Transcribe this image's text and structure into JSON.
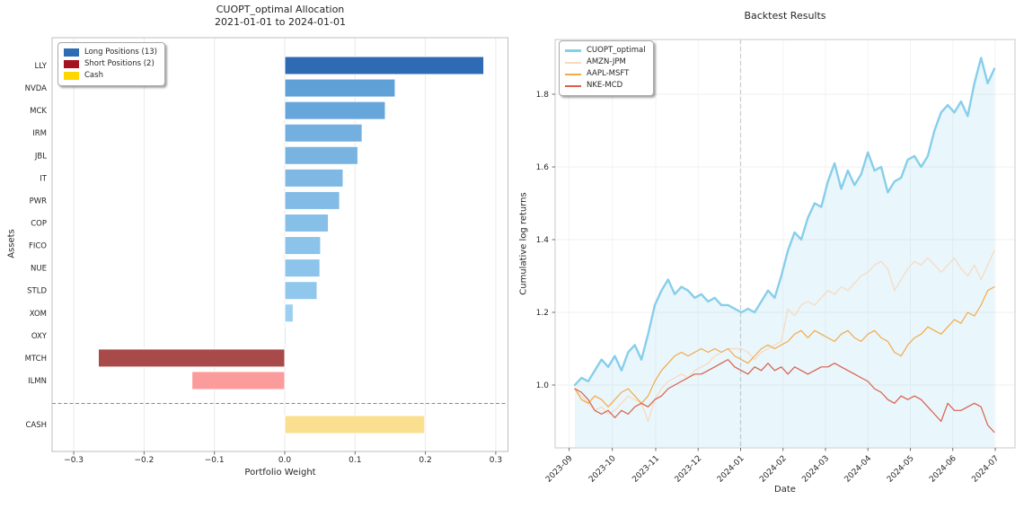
{
  "figure": {
    "background": "#ffffff"
  },
  "chart_data": [
    {
      "id": "allocation",
      "type": "bar",
      "orientation": "horizontal",
      "title": "CUOPT_optimal Allocation",
      "subtitle": "2021-01-01 to 2024-01-01",
      "xlabel": "Portfolio Weight",
      "ylabel": "Assets",
      "xlim": [
        -0.33,
        0.318
      ],
      "grid": "vertical",
      "xticks": [
        -0.3,
        -0.2,
        -0.1,
        0.0,
        0.1,
        0.2,
        0.3
      ],
      "xtick_labels": [
        "−0.3",
        "−0.2",
        "−0.1",
        "0.0",
        "0.1",
        "0.2",
        "0.3"
      ],
      "categories": [
        "LLY",
        "NVDA",
        "MCK",
        "IRM",
        "JBL",
        "IT",
        "PWR",
        "COP",
        "FICO",
        "NUE",
        "STLD",
        "XOM",
        "OXY",
        "MTCH",
        "ILMN",
        "CASH"
      ],
      "values": [
        0.283,
        0.157,
        0.143,
        0.11,
        0.104,
        0.083,
        0.078,
        0.062,
        0.051,
        0.05,
        0.046,
        0.012,
        0.002,
        -0.265,
        -0.132,
        0.199
      ],
      "bar_colors": [
        "#2F6BB5",
        "#5FA0D6",
        "#67A6DA",
        "#73AFDF",
        "#79B4E1",
        "#7EB8E3",
        "#82BBE5",
        "#86BFE8",
        "#8BC3EA",
        "#8CC4EB",
        "#90C7ED",
        "#9CD0F0",
        "#A9DAF7",
        "#A84A4A",
        "#FC9B9B",
        "#FAE08E"
      ],
      "separator_after_index": 14,
      "legend_position": "upper left",
      "legend": [
        {
          "label": "Long Positions (13)",
          "color": "#2E6DB4"
        },
        {
          "label": "Short Positions (2)",
          "color": "#A51220"
        },
        {
          "label": "Cash",
          "color": "#FFD700"
        }
      ]
    },
    {
      "id": "backtest",
      "type": "line",
      "title": "Backtest Results",
      "xlabel": "Date",
      "ylabel": "Cumulative log returns",
      "grid": "both",
      "yticks": [
        1.0,
        1.2,
        1.4,
        1.6,
        1.8
      ],
      "ytick_labels": [
        "1.0",
        "1.2",
        "1.4",
        "1.6",
        "1.8"
      ],
      "xtick_labels": [
        "2023-09",
        "2023-10",
        "2023-11",
        "2023-12",
        "2024-01",
        "2024-02",
        "2024-03",
        "2024-04",
        "2024-05",
        "2024-06",
        "2024-07"
      ],
      "vline_at": "2024-01",
      "vline_style": "dashed",
      "legend_position": "upper left",
      "series": [
        {
          "name": "CUOPT_optimal",
          "color": "#87CEEB",
          "line_width": 2.4,
          "area_fill": "rgba(135,206,235,0.18)",
          "values": [
            1.0,
            1.02,
            1.01,
            1.04,
            1.07,
            1.05,
            1.08,
            1.04,
            1.09,
            1.11,
            1.07,
            1.14,
            1.22,
            1.26,
            1.29,
            1.25,
            1.27,
            1.26,
            1.24,
            1.25,
            1.23,
            1.24,
            1.22,
            1.22,
            1.21,
            1.2,
            1.21,
            1.2,
            1.23,
            1.26,
            1.24,
            1.3,
            1.37,
            1.42,
            1.4,
            1.46,
            1.5,
            1.49,
            1.56,
            1.61,
            1.54,
            1.59,
            1.55,
            1.58,
            1.64,
            1.59,
            1.6,
            1.53,
            1.56,
            1.57,
            1.62,
            1.63,
            1.6,
            1.63,
            1.7,
            1.75,
            1.77,
            1.75,
            1.78,
            1.74,
            1.83,
            1.9,
            1.83,
            1.87
          ]
        },
        {
          "name": "AMZN-JPM",
          "color": "#F9D9BD",
          "line_width": 1.2,
          "values": [
            0.99,
            0.97,
            0.95,
            0.93,
            0.94,
            0.92,
            0.93,
            0.95,
            0.97,
            0.96,
            0.95,
            0.9,
            0.96,
            0.99,
            1.01,
            1.02,
            1.03,
            1.02,
            1.04,
            1.05,
            1.06,
            1.08,
            1.09,
            1.1,
            1.1,
            1.1,
            1.09,
            1.07,
            1.09,
            1.1,
            1.11,
            1.12,
            1.21,
            1.19,
            1.22,
            1.23,
            1.22,
            1.24,
            1.26,
            1.25,
            1.27,
            1.26,
            1.28,
            1.3,
            1.31,
            1.33,
            1.34,
            1.32,
            1.26,
            1.29,
            1.32,
            1.34,
            1.33,
            1.35,
            1.33,
            1.31,
            1.33,
            1.35,
            1.32,
            1.3,
            1.33,
            1.29,
            1.33,
            1.37
          ]
        },
        {
          "name": "AAPL-MSFT",
          "color": "#F5A947",
          "line_width": 1.2,
          "values": [
            0.99,
            0.96,
            0.95,
            0.97,
            0.96,
            0.94,
            0.96,
            0.98,
            0.99,
            0.97,
            0.95,
            0.97,
            1.01,
            1.04,
            1.06,
            1.08,
            1.09,
            1.08,
            1.09,
            1.1,
            1.09,
            1.1,
            1.09,
            1.1,
            1.08,
            1.07,
            1.06,
            1.08,
            1.1,
            1.11,
            1.1,
            1.11,
            1.12,
            1.14,
            1.15,
            1.13,
            1.15,
            1.14,
            1.13,
            1.12,
            1.14,
            1.15,
            1.13,
            1.12,
            1.14,
            1.15,
            1.13,
            1.12,
            1.09,
            1.08,
            1.11,
            1.13,
            1.14,
            1.16,
            1.15,
            1.14,
            1.16,
            1.18,
            1.17,
            1.2,
            1.19,
            1.22,
            1.26,
            1.27
          ]
        },
        {
          "name": "NKE-MCD",
          "color": "#D9604C",
          "line_width": 1.2,
          "values": [
            0.99,
            0.98,
            0.96,
            0.93,
            0.92,
            0.93,
            0.91,
            0.93,
            0.92,
            0.94,
            0.95,
            0.94,
            0.96,
            0.97,
            0.99,
            1.0,
            1.01,
            1.02,
            1.03,
            1.03,
            1.04,
            1.05,
            1.06,
            1.07,
            1.05,
            1.04,
            1.03,
            1.05,
            1.04,
            1.06,
            1.04,
            1.05,
            1.03,
            1.05,
            1.04,
            1.03,
            1.04,
            1.05,
            1.05,
            1.06,
            1.05,
            1.04,
            1.03,
            1.02,
            1.01,
            0.99,
            0.98,
            0.96,
            0.95,
            0.97,
            0.96,
            0.97,
            0.96,
            0.94,
            0.92,
            0.9,
            0.95,
            0.93,
            0.93,
            0.94,
            0.95,
            0.94,
            0.89,
            0.87
          ]
        }
      ]
    }
  ]
}
